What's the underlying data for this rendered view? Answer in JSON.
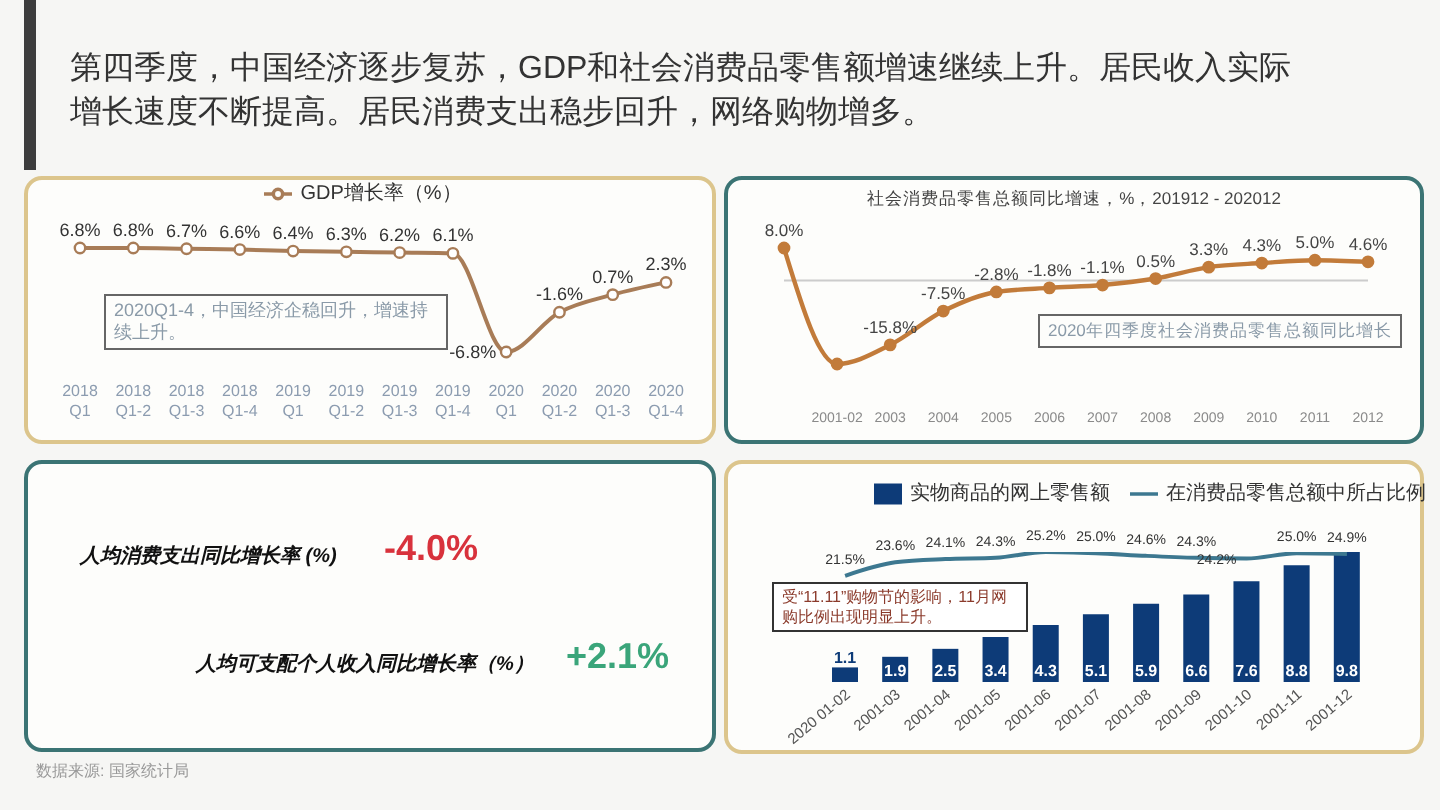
{
  "chart_data": [
    {
      "type": "other",
      "title": "第四季度，中国经济逐步复苏，GDP和社会消费品零售额增速继续上升。居民收入实际增长速度不断提高。居民消费支出稳步回升，网络购物增多。"
    },
    {
      "type": "line",
      "categories": [
        "2018 Q1",
        "2018 Q1-2",
        "2018 Q1-3",
        "2018 Q1-4",
        "2019 Q1",
        "2019 Q1-2",
        "2019 Q1-3",
        "2019 Q1-4",
        "2020 Q1",
        "2020 Q1-2",
        "2020 Q1-3",
        "2020 Q1-4"
      ],
      "series": [
        {
          "name": "GDP增长率（%）",
          "color": "#a87c57",
          "values": [
            6.8,
            6.8,
            6.7,
            6.6,
            6.4,
            6.3,
            6.2,
            6.1,
            -6.8,
            -1.6,
            0.7,
            2.3
          ],
          "value_labels": [
            "6.8%",
            "6.8%",
            "6.7%",
            "6.6%",
            "6.4%",
            "6.3%",
            "6.2%",
            "6.1%",
            "-6.8%",
            "-1.6%",
            "0.7%",
            "2.3%"
          ]
        }
      ],
      "legend": "top",
      "marker": "circle",
      "line_style": "solid",
      "tick_labels": "x",
      "annotations": [
        "2020Q1-4，中国经济企稳回升，增速持续上升。"
      ]
    },
    {
      "type": "line",
      "title": "社会消费品零售总额同比增速，%，201912 - 202012",
      "categories": [
        null,
        "2001-02",
        "2003",
        "2004",
        "2005",
        "2006",
        "2007",
        "2008",
        "2009",
        "2010",
        "2011",
        "2012"
      ],
      "series": [
        {
          "color": "#c27b3a",
          "values": [
            8.0,
            -20.5,
            -15.8,
            -7.5,
            -2.8,
            -1.8,
            -1.1,
            0.5,
            3.3,
            4.3,
            5.0,
            4.6
          ],
          "value_labels": [
            "8.0%",
            null,
            "-15.8%",
            "-7.5%",
            "-2.8%",
            "-1.8%",
            "-1.1%",
            "0.5%",
            "3.3%",
            "4.3%",
            "5.0%",
            "4.6%"
          ]
        }
      ],
      "marker": "circle",
      "line_style": "solid",
      "tick_labels": "x",
      "ref_lines": [
        {
          "axis": "y",
          "value": 0,
          "color": "#cccccc"
        }
      ],
      "annotations": [
        "2020年四季度社会消费品零售总额同比增长"
      ]
    },
    {
      "type": "other",
      "annotations": [
        "人均消费支出同比增长率 (%)",
        "-4.0%",
        "人均可支配个人收入同比增长率（%）",
        "+2.1%",
        "数据来源: 国家统计局"
      ]
    },
    {
      "type": "bar",
      "categories": [
        "2020 01-02",
        "2001-03",
        "2001-04",
        "2001-05",
        "2001-06",
        "2001-07",
        "2001-08",
        "2001-09",
        "2001-10",
        "2001-11",
        "2001-12"
      ],
      "series": [
        {
          "name": "实物商品的网上零售额",
          "color": "#0d3b78",
          "values": [
            1.1,
            1.9,
            2.5,
            3.4,
            4.3,
            5.1,
            5.9,
            6.6,
            7.6,
            8.8,
            9.8
          ],
          "value_labels": [
            "1.1",
            "1.9",
            "2.5",
            "3.4",
            "4.3",
            "5.1",
            "5.9",
            "6.6",
            "7.6",
            "8.8",
            "9.8"
          ]
        },
        {
          "name": "在消费品零售总额中所占比例",
          "type": "line",
          "axis": "y2",
          "color": "#3d7890",
          "values": [
            21.5,
            23.6,
            24.1,
            24.3,
            25.2,
            25.0,
            24.6,
            24.3,
            24.2,
            25.0,
            24.9
          ],
          "value_labels": [
            "21.5%",
            "23.6%",
            "24.1%",
            "24.3%",
            "25.2%",
            "25.0%",
            "24.6%",
            "24.3%",
            "24.2%",
            "25.0%",
            "24.9%"
          ]
        }
      ],
      "ylim": [
        0,
        9.8
      ],
      "y2lim": [
        5,
        25.2
      ],
      "legend": "top",
      "tick_labels": "x",
      "annotations": [
        "受“11.11”购物节的影响，11月网购比例出现明显上升。"
      ]
    }
  ]
}
